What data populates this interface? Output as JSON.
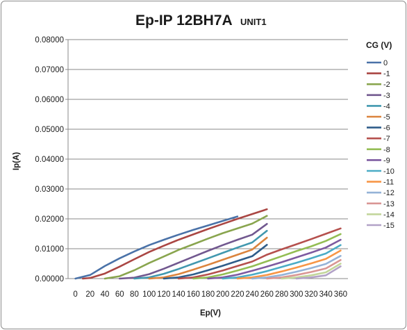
{
  "chart_data": {
    "type": "line",
    "title": "Ep-IP 12BH7A",
    "subtitle": "UNIT1",
    "xlabel": "Ep(V)",
    "ylabel": "Ip(A)",
    "legend_title": "CG (V)",
    "legend_position": "right",
    "grid": {
      "horizontal": true,
      "vertical": false
    },
    "x_ticks": [
      "0",
      "20",
      "40",
      "60",
      "80",
      "100",
      "120",
      "140",
      "160",
      "180",
      "200",
      "220",
      "240",
      "260",
      "280",
      "300",
      "320",
      "340",
      "360"
    ],
    "y_ticks": [
      "0.00000",
      "0.01000",
      "0.02000",
      "0.03000",
      "0.04000",
      "0.05000",
      "0.06000",
      "0.07000",
      "0.08000"
    ],
    "ylim": [
      0,
      0.08
    ],
    "series": [
      {
        "name": "0",
        "color": "#4a72a8",
        "x": [
          0,
          20,
          40,
          60,
          80,
          100,
          120,
          140,
          160,
          180,
          200,
          220
        ],
        "values": [
          0,
          0.0012,
          0.0042,
          0.0068,
          0.0091,
          0.0112,
          0.013,
          0.0147,
          0.0163,
          0.0178,
          0.0193,
          0.0208
        ]
      },
      {
        "name": "-1",
        "color": "#aa4643",
        "x": [
          10,
          20,
          40,
          60,
          80,
          100,
          120,
          140,
          160,
          180,
          200,
          220,
          240,
          260
        ],
        "values": [
          0,
          0.0002,
          0.0017,
          0.004,
          0.0065,
          0.0089,
          0.011,
          0.013,
          0.0148,
          0.0166,
          0.0183,
          0.02,
          0.0216,
          0.0232
        ]
      },
      {
        "name": "-2",
        "color": "#89a54e",
        "x": [
          40,
          60,
          80,
          100,
          120,
          140,
          160,
          180,
          200,
          220,
          240,
          260
        ],
        "values": [
          0,
          0.0008,
          0.0028,
          0.0052,
          0.0074,
          0.0096,
          0.0115,
          0.0134,
          0.0152,
          0.0168,
          0.0184,
          0.021
        ]
      },
      {
        "name": "-3",
        "color": "#71588f",
        "x": [
          60,
          80,
          100,
          120,
          140,
          160,
          180,
          200,
          220,
          240,
          260
        ],
        "values": [
          0,
          0.0003,
          0.0015,
          0.0033,
          0.0053,
          0.0073,
          0.0093,
          0.0112,
          0.013,
          0.0147,
          0.0183
        ]
      },
      {
        "name": "-4",
        "color": "#4198af",
        "x": [
          80,
          100,
          120,
          140,
          160,
          180,
          200,
          220,
          240,
          260
        ],
        "values": [
          0,
          0.0004,
          0.0016,
          0.0032,
          0.005,
          0.0068,
          0.0086,
          0.0104,
          0.0121,
          0.016
        ]
      },
      {
        "name": "-5",
        "color": "#db843d",
        "x": [
          100,
          120,
          140,
          160,
          180,
          200,
          220,
          240,
          260
        ],
        "values": [
          0,
          0.0004,
          0.0015,
          0.003,
          0.0046,
          0.0063,
          0.008,
          0.0097,
          0.0137
        ]
      },
      {
        "name": "-6",
        "color": "#2f5d8a",
        "x": [
          120,
          140,
          160,
          180,
          200,
          220,
          240,
          260
        ],
        "values": [
          0,
          0.0004,
          0.0014,
          0.0028,
          0.0043,
          0.0059,
          0.0075,
          0.0113
        ]
      },
      {
        "name": "-7",
        "color": "#b5504d",
        "x": [
          140,
          160,
          180,
          200,
          220,
          240,
          260,
          280,
          300,
          320,
          340,
          360
        ],
        "values": [
          0,
          0.0004,
          0.0014,
          0.0027,
          0.0042,
          0.0057,
          0.008,
          0.0098,
          0.0115,
          0.0132,
          0.015,
          0.0168
        ]
      },
      {
        "name": "-8",
        "color": "#93bd53",
        "x": [
          160,
          180,
          200,
          220,
          240,
          260,
          280,
          300,
          320,
          340,
          360
        ],
        "values": [
          0,
          0.0004,
          0.0014,
          0.0027,
          0.0041,
          0.0058,
          0.0075,
          0.0092,
          0.0108,
          0.0126,
          0.0149
        ]
      },
      {
        "name": "-9",
        "color": "#7d5aa0",
        "x": [
          180,
          200,
          220,
          240,
          260,
          280,
          300,
          320,
          340,
          360
        ],
        "values": [
          0,
          0.0004,
          0.0013,
          0.0026,
          0.004,
          0.0055,
          0.0071,
          0.0087,
          0.0104,
          0.013
        ]
      },
      {
        "name": "-10",
        "color": "#4bacc6",
        "x": [
          200,
          220,
          240,
          260,
          280,
          300,
          320,
          340,
          360
        ],
        "values": [
          0,
          0.0004,
          0.0013,
          0.0025,
          0.0039,
          0.0053,
          0.0068,
          0.0084,
          0.0112
        ]
      },
      {
        "name": "-11",
        "color": "#f79646",
        "x": [
          220,
          240,
          260,
          280,
          300,
          320,
          340,
          360
        ],
        "values": [
          0,
          0.0004,
          0.0012,
          0.0024,
          0.0037,
          0.0051,
          0.0066,
          0.0094
        ]
      },
      {
        "name": "-12",
        "color": "#95b3d7",
        "x": [
          240,
          260,
          280,
          300,
          320,
          340,
          360
        ],
        "values": [
          0,
          0.0004,
          0.0012,
          0.0023,
          0.0035,
          0.0049,
          0.0076
        ]
      },
      {
        "name": "-13",
        "color": "#d99694",
        "x": [
          260,
          280,
          300,
          320,
          340,
          360
        ],
        "values": [
          0,
          0.0004,
          0.0012,
          0.0022,
          0.0034,
          0.0062
        ]
      },
      {
        "name": "-14",
        "color": "#c3d69b",
        "x": [
          280,
          300,
          320,
          340,
          360
        ],
        "values": [
          0,
          0.0004,
          0.0011,
          0.0021,
          0.005
        ]
      },
      {
        "name": "-15",
        "color": "#b2a2c7",
        "x": [
          300,
          320,
          340,
          360
        ],
        "values": [
          0,
          0.0004,
          0.0011,
          0.0041
        ]
      }
    ]
  }
}
